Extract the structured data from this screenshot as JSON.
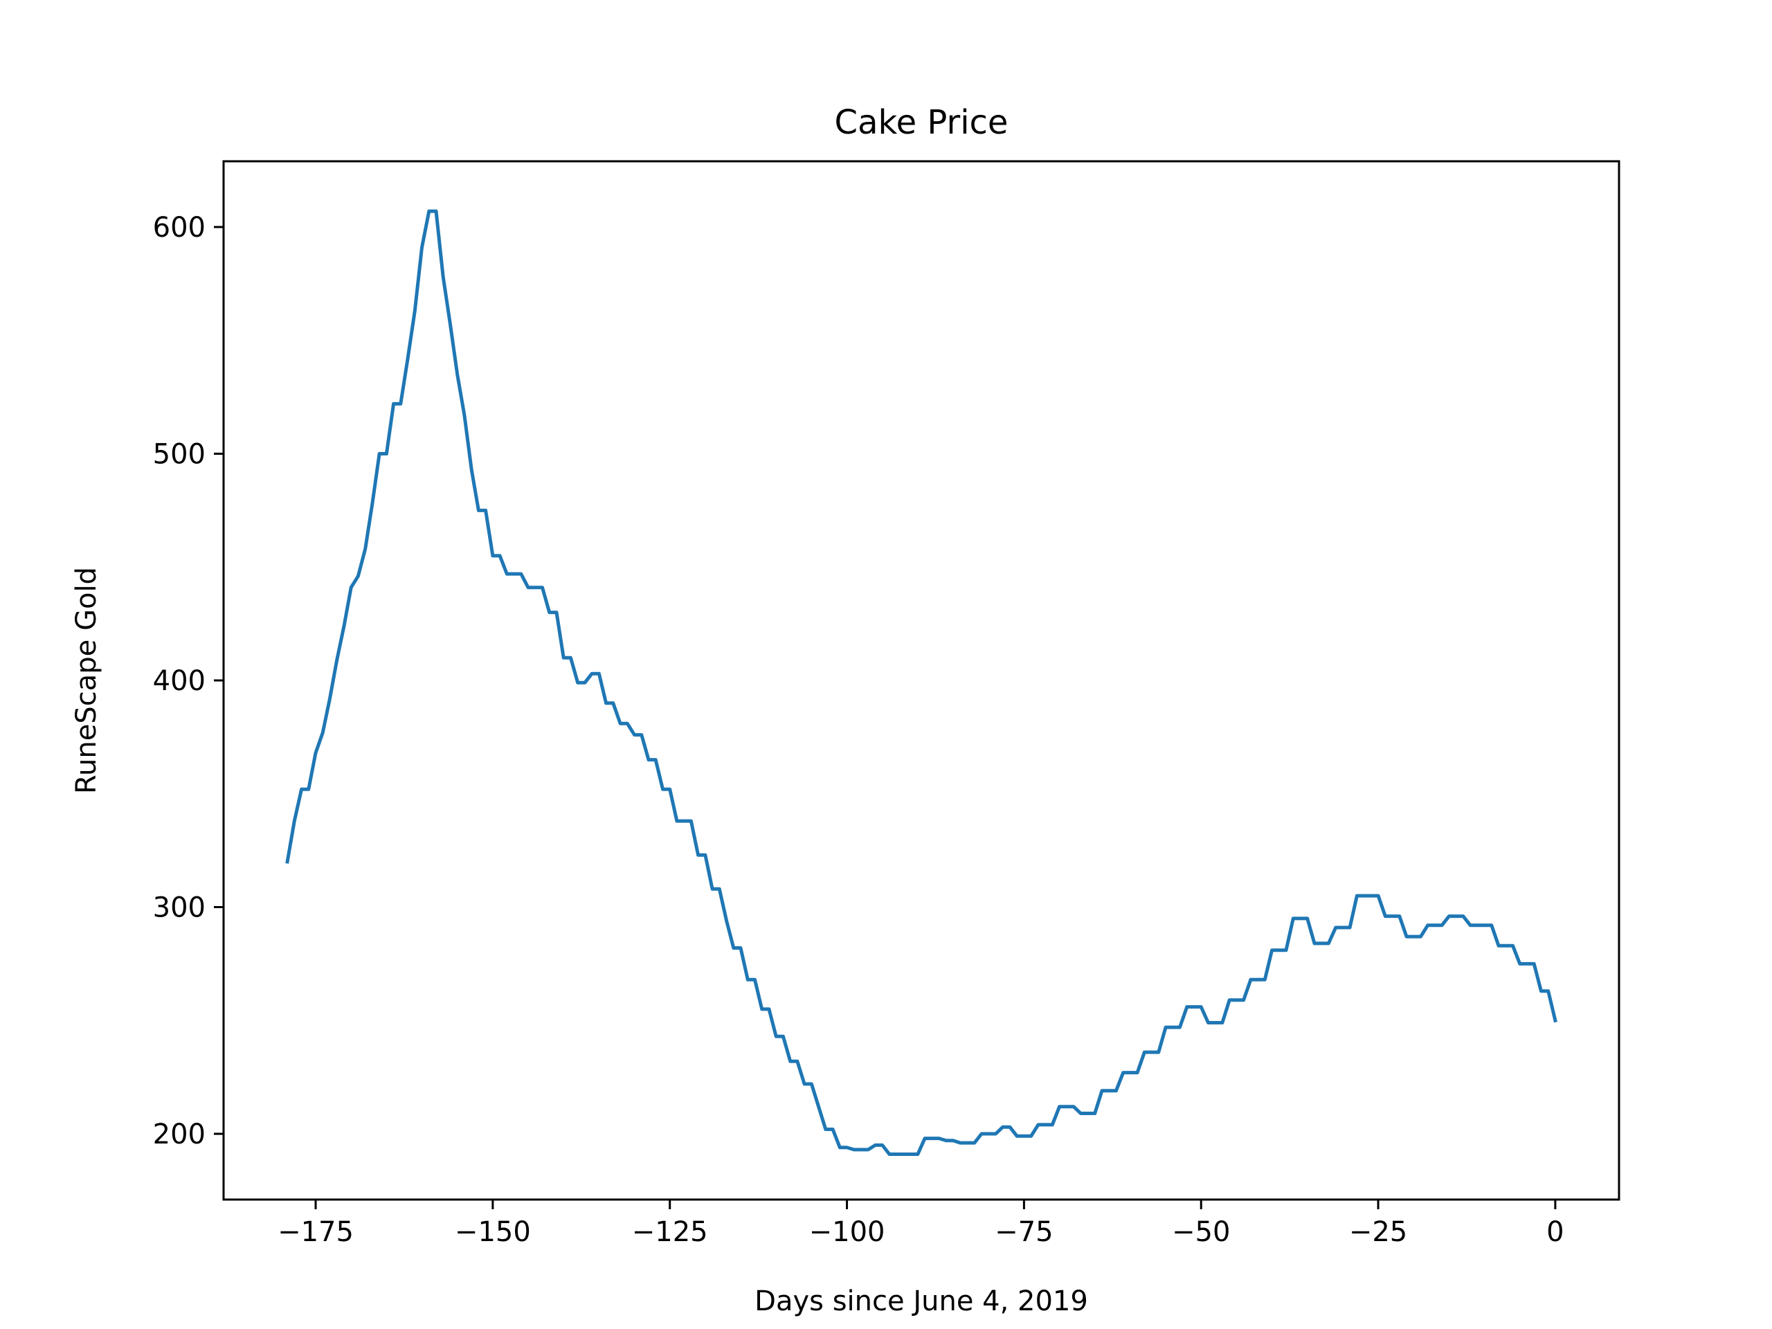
{
  "chart_data": {
    "type": "line",
    "title": "Cake Price",
    "xlabel": "Days since June 4, 2019",
    "ylabel": "RuneScape Gold",
    "xlim": [
      -188,
      9
    ],
    "ylim": [
      171,
      629
    ],
    "xticks": [
      -175,
      -150,
      -125,
      -100,
      -75,
      -50,
      -25,
      0
    ],
    "xtick_labels": [
      "−175",
      "−150",
      "−125",
      "−100",
      "−75",
      "−50",
      "−25",
      "0"
    ],
    "yticks": [
      200,
      300,
      400,
      500,
      600
    ],
    "ytick_labels": [
      "200",
      "300",
      "400",
      "500",
      "600"
    ],
    "grid": false,
    "series": [
      {
        "color": "#1f77b4",
        "x": [
          -179,
          -178,
          -177,
          -176,
          -175,
          -174,
          -173,
          -172,
          -171,
          -170,
          -169,
          -168,
          -167,
          -166,
          -165,
          -164,
          -163,
          -162,
          -161,
          -160,
          -159,
          -158,
          -157,
          -156,
          -155,
          -154,
          -153,
          -152,
          -151,
          -150,
          -149,
          -148,
          -147,
          -146,
          -145,
          -144,
          -143,
          -142,
          -141,
          -140,
          -139,
          -138,
          -137,
          -136,
          -135,
          -134,
          -133,
          -132,
          -131,
          -130,
          -129,
          -128,
          -127,
          -126,
          -125,
          -124,
          -123,
          -122,
          -121,
          -120,
          -119,
          -118,
          -117,
          -116,
          -115,
          -114,
          -113,
          -112,
          -111,
          -110,
          -109,
          -108,
          -107,
          -106,
          -105,
          -104,
          -103,
          -102,
          -101,
          -100,
          -99,
          -98,
          -97,
          -96,
          -95,
          -94,
          -93,
          -92,
          -91,
          -90,
          -89,
          -88,
          -87,
          -86,
          -85,
          -84,
          -83,
          -82,
          -81,
          -80,
          -79,
          -78,
          -77,
          -76,
          -75,
          -74,
          -73,
          -72,
          -71,
          -70,
          -69,
          -68,
          -67,
          -66,
          -65,
          -64,
          -63,
          -62,
          -61,
          -60,
          -59,
          -58,
          -57,
          -56,
          -55,
          -54,
          -53,
          -52,
          -51,
          -50,
          -49,
          -48,
          -47,
          -46,
          -45,
          -44,
          -43,
          -42,
          -41,
          -40,
          -39,
          -38,
          -37,
          -36,
          -35,
          -34,
          -33,
          -32,
          -31,
          -30,
          -29,
          -28,
          -27,
          -26,
          -25,
          -24,
          -23,
          -22,
          -21,
          -20,
          -19,
          -18,
          -17,
          -16,
          -15,
          -14,
          -13,
          -12,
          -11,
          -10,
          -9,
          -8,
          -7,
          -6,
          -5,
          -4,
          -3,
          -2,
          -1,
          0
        ],
        "y": [
          320,
          338,
          352,
          352,
          368,
          377,
          392,
          409,
          424,
          441,
          446,
          458,
          478,
          500,
          500,
          522,
          522,
          542,
          563,
          591,
          607,
          607,
          578,
          557,
          535,
          517,
          493,
          475,
          475,
          455,
          455,
          447,
          447,
          447,
          441,
          441,
          441,
          430,
          430,
          410,
          410,
          399,
          399,
          403,
          403,
          390,
          390,
          381,
          381,
          376,
          376,
          365,
          365,
          352,
          352,
          338,
          338,
          338,
          323,
          323,
          308,
          308,
          294,
          282,
          282,
          268,
          268,
          255,
          255,
          243,
          243,
          232,
          232,
          222,
          222,
          212,
          202,
          202,
          194,
          194,
          193,
          193,
          193,
          195,
          195,
          191,
          191,
          191,
          191,
          191,
          198,
          198,
          198,
          197,
          197,
          196,
          196,
          196,
          200,
          200,
          200,
          203,
          203,
          199,
          199,
          199,
          204,
          204,
          204,
          212,
          212,
          212,
          209,
          209,
          209,
          219,
          219,
          219,
          227,
          227,
          227,
          236,
          236,
          236,
          247,
          247,
          247,
          256,
          256,
          256,
          249,
          249,
          249,
          259,
          259,
          259,
          268,
          268,
          268,
          281,
          281,
          281,
          295,
          295,
          295,
          284,
          284,
          284,
          291,
          291,
          291,
          305,
          305,
          305,
          305,
          296,
          296,
          296,
          287,
          287,
          287,
          292,
          292,
          292,
          296,
          296,
          296,
          292,
          292,
          292,
          292,
          283,
          283,
          283,
          275,
          275,
          275,
          263,
          263,
          250
        ]
      }
    ]
  }
}
